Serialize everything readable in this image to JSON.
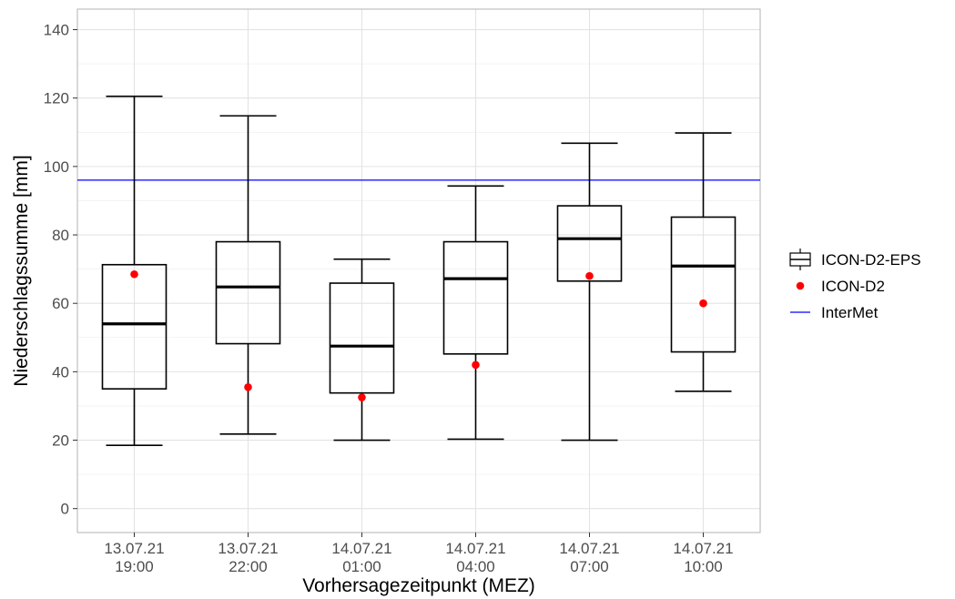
{
  "chart_data": {
    "type": "boxplot",
    "xlabel": "Vorhersagezeitpunkt (MEZ)",
    "ylabel": "Niederschlagssumme [mm]",
    "ylim": [
      -7,
      146
    ],
    "yticks": [
      0,
      20,
      40,
      60,
      80,
      100,
      120,
      140
    ],
    "grid": true,
    "legend_position": "right",
    "categories": [
      {
        "line1": "13.07.21",
        "line2": "19:00"
      },
      {
        "line1": "13.07.21",
        "line2": "22:00"
      },
      {
        "line1": "14.07.21",
        "line2": "01:00"
      },
      {
        "line1": "14.07.21",
        "line2": "04:00"
      },
      {
        "line1": "14.07.21",
        "line2": "07:00"
      },
      {
        "line1": "14.07.21",
        "line2": "10:00"
      }
    ],
    "series": [
      {
        "name": "ICON-D2-EPS",
        "kind": "box",
        "color": "#000000",
        "boxes": [
          {
            "min": 18.5,
            "q1": 35.0,
            "median": 54.0,
            "q3": 71.3,
            "max": 120.5
          },
          {
            "min": 21.8,
            "q1": 48.2,
            "median": 64.8,
            "q3": 78.0,
            "max": 114.8
          },
          {
            "min": 20.0,
            "q1": 33.8,
            "median": 47.5,
            "q3": 65.9,
            "max": 72.9
          },
          {
            "min": 20.3,
            "q1": 45.2,
            "median": 67.2,
            "q3": 78.0,
            "max": 94.3
          },
          {
            "min": 20.0,
            "q1": 66.5,
            "median": 78.9,
            "q3": 88.5,
            "max": 106.8
          },
          {
            "min": 34.3,
            "q1": 45.8,
            "median": 70.9,
            "q3": 85.2,
            "max": 109.8
          }
        ]
      },
      {
        "name": "ICON-D2",
        "kind": "point",
        "color": "#ff0000",
        "values": [
          68.5,
          35.5,
          32.5,
          42.0,
          68.0,
          60.0
        ]
      },
      {
        "name": "InterMet",
        "kind": "hline",
        "color": "#0000ff",
        "value": 96.0
      }
    ]
  }
}
